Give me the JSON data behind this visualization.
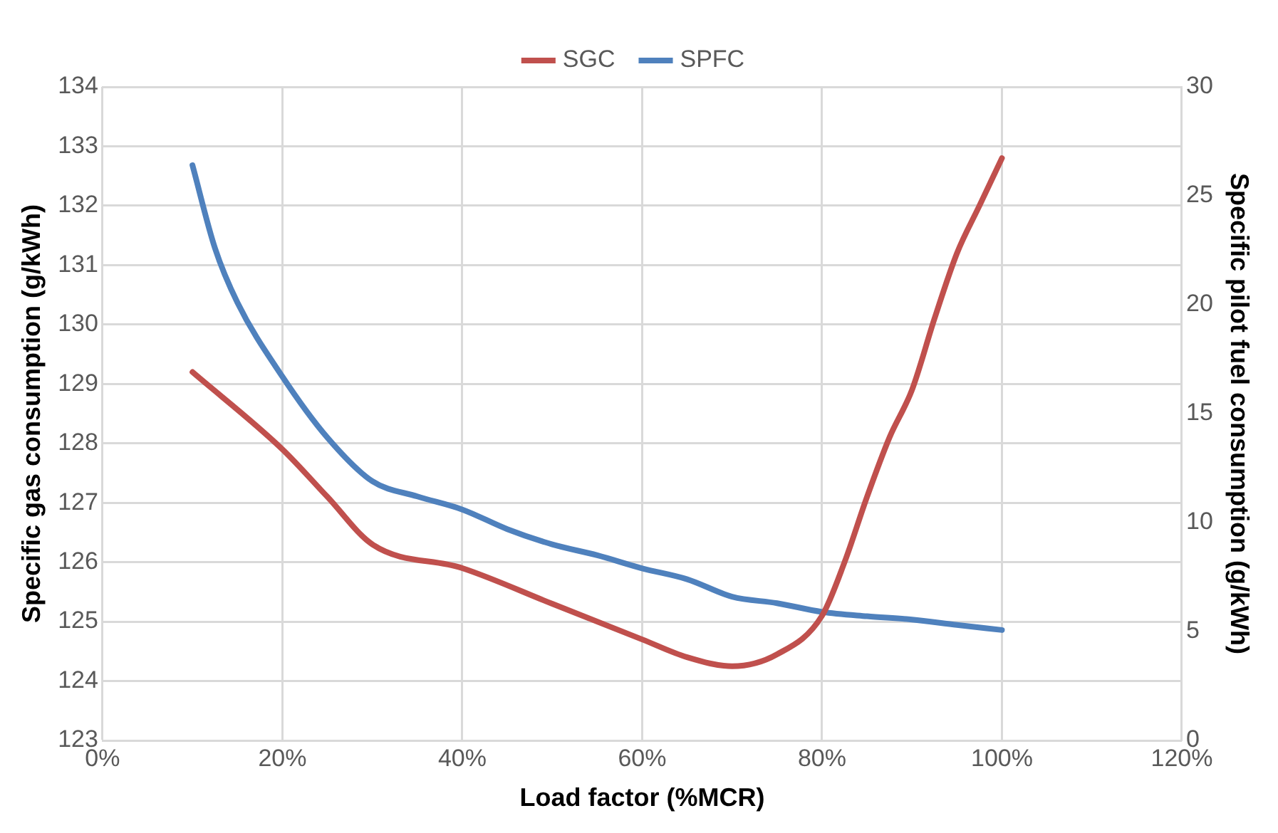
{
  "chart_data": {
    "type": "line",
    "xlabel": "Load factor (%MCR)",
    "ylabel": "Specific gas consumption (g/kWh)",
    "y2label": "Specific pilot fuel consumption (g/kWh)",
    "xlim": [
      0,
      120
    ],
    "xticks": [
      {
        "value": 0,
        "label": "0%"
      },
      {
        "value": 20,
        "label": "20%"
      },
      {
        "value": 40,
        "label": "40%"
      },
      {
        "value": 60,
        "label": "60%"
      },
      {
        "value": 80,
        "label": "80%"
      },
      {
        "value": 100,
        "label": "100%"
      },
      {
        "value": 120,
        "label": "120%"
      }
    ],
    "ylim": [
      123,
      134
    ],
    "yticks": [
      123,
      124,
      125,
      126,
      127,
      128,
      129,
      130,
      131,
      132,
      133,
      134
    ],
    "y2lim": [
      0,
      30
    ],
    "y2ticks": [
      0,
      5,
      10,
      15,
      20,
      25,
      30
    ],
    "grid": true,
    "legend": "top",
    "marker": "none",
    "line_style": "solid",
    "series": [
      {
        "name": "SGC",
        "color": "#c0504d",
        "x": [
          10,
          20,
          25,
          30,
          40,
          50,
          60,
          65,
          70,
          75,
          80,
          82.5,
          85,
          87.5,
          90,
          92.5,
          95,
          97.5,
          100
        ],
        "values": [
          129.2,
          127.9,
          127.1,
          126.3,
          125.9,
          125.3,
          124.7,
          124.4,
          124.25,
          124.45,
          125.1,
          126,
          127.1,
          128.1,
          128.9,
          130.1,
          131.2,
          132,
          132.8
        ]
      },
      {
        "name": "SPFC",
        "color": "#4f81bd",
        "axis": "y2",
        "x": [
          10,
          12.5,
          15,
          20,
          25,
          30,
          35,
          40,
          45,
          50,
          55,
          60,
          65,
          70,
          75,
          80,
          85,
          90,
          95,
          100
        ],
        "values": [
          26.4,
          22.6,
          20.1,
          16.7,
          13.9,
          11.9,
          11.2,
          10.6,
          9.7,
          9,
          8.5,
          7.9,
          7.4,
          6.6,
          6.3,
          5.9,
          5.7,
          5.55,
          5.3,
          5.07
        ]
      }
    ]
  }
}
